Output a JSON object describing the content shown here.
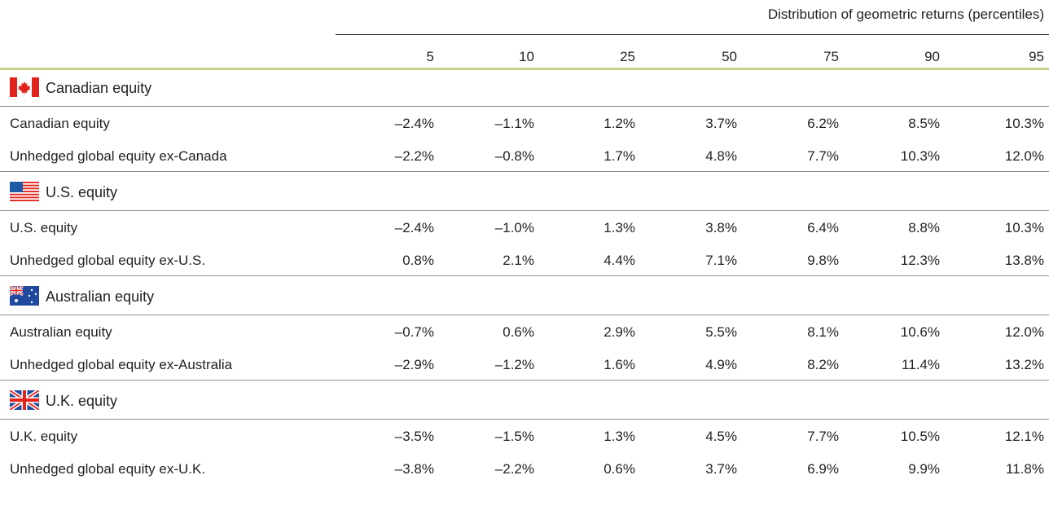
{
  "header": {
    "title": "Distribution of geometric returns (percentiles)",
    "columns": [
      "5",
      "10",
      "25",
      "50",
      "75",
      "90",
      "95"
    ]
  },
  "groups": [
    {
      "title": "Canadian equity",
      "rows": [
        {
          "label": "Canadian equity",
          "values": [
            "–2.4%",
            "–1.1%",
            "1.2%",
            "3.7%",
            "6.2%",
            "8.5%",
            "10.3%"
          ]
        },
        {
          "label": "Unhedged global equity ex-Canada",
          "values": [
            "–2.2%",
            "–0.8%",
            "1.7%",
            "4.8%",
            "7.7%",
            "10.3%",
            "12.0%"
          ]
        }
      ]
    },
    {
      "title": "U.S. equity",
      "rows": [
        {
          "label": "U.S. equity",
          "values": [
            "–2.4%",
            "–1.0%",
            "1.3%",
            "3.8%",
            "6.4%",
            "8.8%",
            "10.3%"
          ]
        },
        {
          "label": "Unhedged global equity ex-U.S.",
          "values": [
            "0.8%",
            "2.1%",
            "4.4%",
            "7.1%",
            "9.8%",
            "12.3%",
            "13.8%"
          ]
        }
      ]
    },
    {
      "title": "Australian equity",
      "rows": [
        {
          "label": "Australian equity",
          "values": [
            "–0.7%",
            "0.6%",
            "2.9%",
            "5.5%",
            "8.1%",
            "10.6%",
            "12.0%"
          ]
        },
        {
          "label": "Unhedged global equity ex-Australia",
          "values": [
            "–2.9%",
            "–1.2%",
            "1.6%",
            "4.9%",
            "8.2%",
            "11.4%",
            "13.2%"
          ]
        }
      ]
    },
    {
      "title": "U.K. equity",
      "rows": [
        {
          "label": "U.K. equity",
          "values": [
            "–3.5%",
            "–1.5%",
            "1.3%",
            "4.5%",
            "7.7%",
            "10.5%",
            "12.1%"
          ]
        },
        {
          "label": "Unhedged global equity ex-U.K.",
          "values": [
            "–3.8%",
            "–2.2%",
            "0.6%",
            "3.7%",
            "6.9%",
            "9.9%",
            "11.8%"
          ]
        }
      ]
    }
  ]
}
